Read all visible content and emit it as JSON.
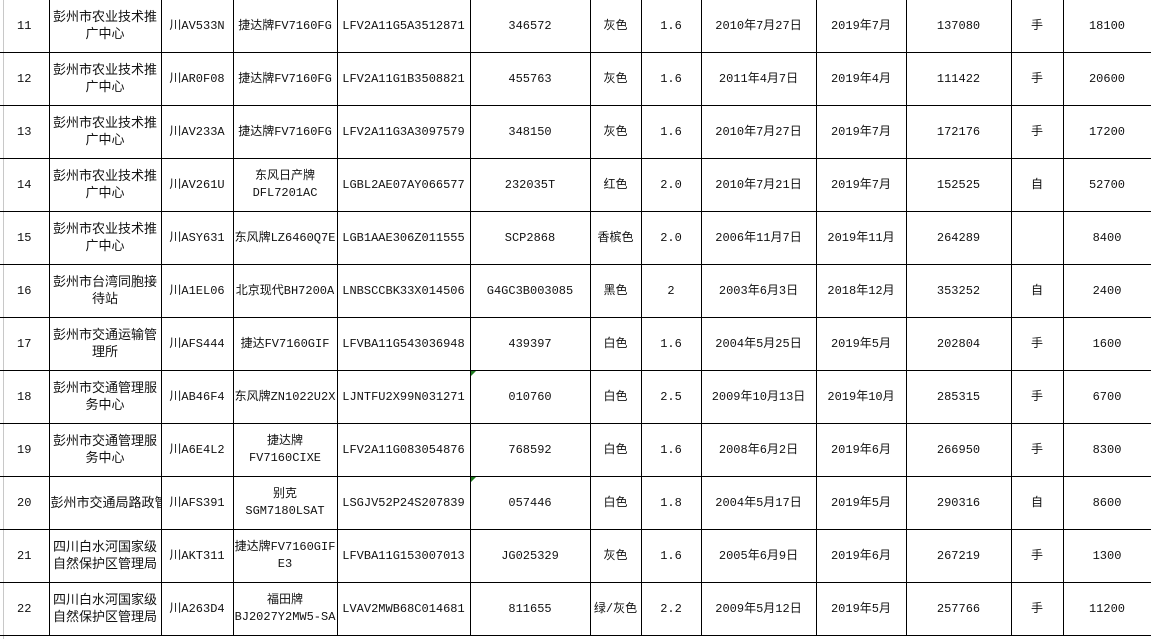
{
  "sheet": {
    "rows": [
      {
        "no": "11",
        "unit": "彭州市农业技术推广中心",
        "plate": "川AV533N",
        "model": "捷达牌FV7160FG",
        "vin": "LFV2A11G5A3512871",
        "engine": "346572",
        "color": "灰色",
        "displacement": "1.6",
        "register_date": "2010年7月27日",
        "inspection": "2019年7月",
        "mileage": "137080",
        "transmission": "手",
        "price": "18100"
      },
      {
        "no": "12",
        "unit": "彭州市农业技术推广中心",
        "plate": "川AR0F08",
        "model": "捷达牌FV7160FG",
        "vin": "LFV2A11G1B3508821",
        "engine": "455763",
        "color": "灰色",
        "displacement": "1.6",
        "register_date": "2011年4月7日",
        "inspection": "2019年4月",
        "mileage": "111422",
        "transmission": "手",
        "price": "20600"
      },
      {
        "no": "13",
        "unit": "彭州市农业技术推广中心",
        "plate": "川AV233A",
        "model": "捷达牌FV7160FG",
        "vin": "LFV2A11G3A3097579",
        "engine": "348150",
        "color": "灰色",
        "displacement": "1.6",
        "register_date": "2010年7月27日",
        "inspection": "2019年7月",
        "mileage": "172176",
        "transmission": "手",
        "price": "17200"
      },
      {
        "no": "14",
        "unit": "彭州市农业技术推广中心",
        "plate": "川AV261U",
        "model": "东风日产牌DFL7201AC",
        "vin": "LGBL2AE07AY066577",
        "engine": "232035T",
        "color": "红色",
        "displacement": "2.0",
        "register_date": "2010年7月21日",
        "inspection": "2019年7月",
        "mileage": "152525",
        "transmission": "自",
        "price": "52700"
      },
      {
        "no": "15",
        "unit": "彭州市农业技术推广中心",
        "plate": "川ASY631",
        "model": "东风牌LZ6460Q7E",
        "vin": "LGB1AAE306Z011555",
        "engine": "SCP2868",
        "color": "香槟色",
        "displacement": "2.0",
        "register_date": "2006年11月7日",
        "inspection": "2019年11月",
        "mileage": "264289",
        "transmission": "",
        "price": "8400"
      },
      {
        "no": "16",
        "unit": "彭州市台湾同胞接待站",
        "plate": "川A1EL06",
        "model": "北京现代BH7200A",
        "vin": "LNBSCCBK33X014506",
        "engine": "G4GC3B003085",
        "color": "黑色",
        "displacement": "2",
        "register_date": "2003年6月3日",
        "inspection": "2018年12月",
        "mileage": "353252",
        "transmission": "自",
        "price": "2400"
      },
      {
        "no": "17",
        "unit": "彭州市交通运输管理所",
        "plate": "川AFS444",
        "model": "捷达FV7160GIF",
        "vin": "LFVBA11G543036948",
        "engine": "439397",
        "color": "白色",
        "displacement": "1.6",
        "register_date": "2004年5月25日",
        "inspection": "2019年5月",
        "mileage": "202804",
        "transmission": "手",
        "price": "1600"
      },
      {
        "no": "18",
        "unit": "彭州市交通管理服务中心",
        "plate": "川AB46F4",
        "model": "东风牌ZN1022U2X",
        "vin": "LJNTFU2X99N031271",
        "engine": "010760",
        "color": "白色",
        "displacement": "2.5",
        "register_date": "2009年10月13日",
        "inspection": "2019年10月",
        "mileage": "285315",
        "transmission": "手",
        "price": "6700",
        "flag": true
      },
      {
        "no": "19",
        "unit": "彭州市交通管理服务中心",
        "plate": "川A6E4L2",
        "model": "捷达牌FV7160CIXE",
        "vin": "LFV2A11G083054876",
        "engine": "768592",
        "color": "白色",
        "displacement": "1.6",
        "register_date": "2008年6月2日",
        "inspection": "2019年6月",
        "mileage": "266950",
        "transmission": "手",
        "price": "8300"
      },
      {
        "no": "20",
        "unit": "彭州市交通局路政管",
        "plate": "川AFS391",
        "model": "别克SGM7180LSAT",
        "vin": "LSGJV52P24S207839",
        "engine": "057446",
        "color": "白色",
        "displacement": "1.8",
        "register_date": "2004年5月17日",
        "inspection": "2019年5月",
        "mileage": "290316",
        "transmission": "自",
        "price": "8600",
        "flag": true,
        "unit_overflow": true
      },
      {
        "no": "21",
        "unit": "四川白水河国家级自然保护区管理局",
        "plate": "川AKT311",
        "model": "捷达牌FV7160GIF E3",
        "vin": "LFVBA11G153007013",
        "engine": "JG025329",
        "color": "灰色",
        "displacement": "1.6",
        "register_date": "2005年6月9日",
        "inspection": "2019年6月",
        "mileage": "267219",
        "transmission": "手",
        "price": "1300"
      },
      {
        "no": "22",
        "unit": "四川白水河国家级自然保护区管理局",
        "plate": "川A263D4",
        "model": "福田牌BJ2027Y2MW5-SA",
        "vin": "LVAV2MWB68C014681",
        "engine": "811655",
        "color": "绿/灰色",
        "displacement": "2.2",
        "register_date": "2009年5月12日",
        "inspection": "2019年5月",
        "mileage": "257766",
        "transmission": "手",
        "price": "11200"
      }
    ],
    "comment_marker_color": "#1f7a1f"
  }
}
